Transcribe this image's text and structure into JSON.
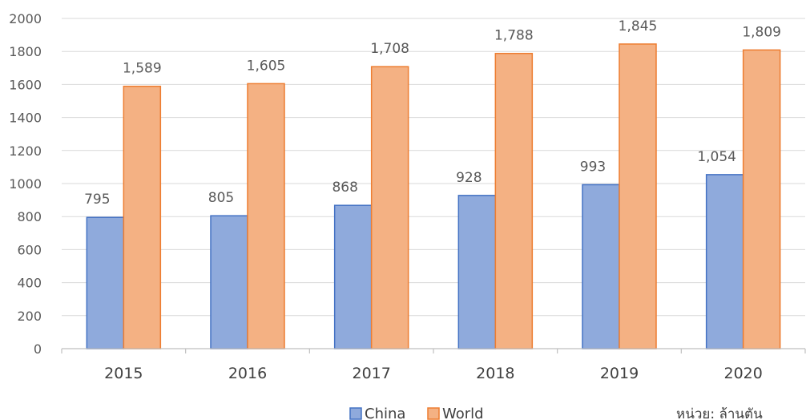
{
  "chart_data": {
    "type": "bar",
    "categories": [
      "2015",
      "2016",
      "2017",
      "2018",
      "2019",
      "2020"
    ],
    "series": [
      {
        "name": "China",
        "values": [
          795,
          805,
          868,
          928,
          993,
          1054
        ],
        "labels": [
          "795",
          "805",
          "868",
          "928",
          "993",
          "1,054"
        ],
        "color": "#8FAADC",
        "edge": "#4472C4"
      },
      {
        "name": "World",
        "values": [
          1589,
          1605,
          1708,
          1788,
          1845,
          1809
        ],
        "labels": [
          "1,589",
          "1,605",
          "1,708",
          "1,788",
          "1,845",
          "1,809"
        ],
        "color": "#F4B183",
        "edge": "#ED7D31"
      }
    ],
    "y_ticks": [
      "0",
      "200",
      "400",
      "600",
      "800",
      "1000",
      "1200",
      "1400",
      "1600",
      "1800",
      "2000"
    ],
    "ylim": [
      0,
      2000
    ],
    "grid": true,
    "legend": "bottom",
    "unit_note": "หน่วย: ล้านตัน"
  }
}
